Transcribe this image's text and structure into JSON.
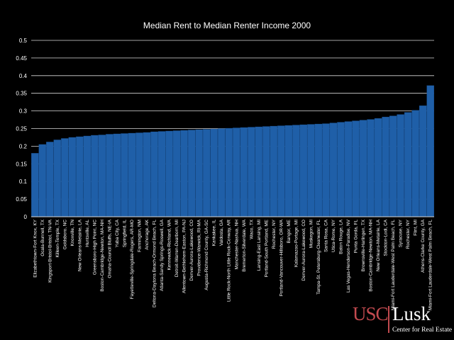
{
  "chart_data": {
    "type": "bar",
    "title": "Median Rent to Median Renter Income 2000",
    "xlabel": "",
    "ylabel": "",
    "ylim": [
      0,
      0.5
    ],
    "yticks": [
      "0",
      "0.05",
      "0.1",
      "0.15",
      "0.2",
      "0.25",
      "0.3",
      "0.35",
      "0.4",
      "0.45",
      "0.5"
    ],
    "grid": true,
    "bar_color": "#1f5fa8",
    "categories": [
      "Elizabethtown-Fort Knox, KY",
      "Ocala-Bunnell, TX",
      "Kingsport-Bristol-Bristol, TN-VA",
      "Killeen-Temple, TX",
      "Goldsboro, NC",
      "Knoxville, TN",
      "New Orleans-Metairie, LA",
      "Huntsville, AL",
      "Greensboro-High Point, NC",
      "Boston-Cambridge-Newton, MA-NH",
      "Omaha-Council Bluffs, NE-IA",
      "Yuba City, CA",
      "Springfield, IL",
      "Fayetteville-Springdale-Rogers, AR-MO",
      "Farmington, NM",
      "Anchorage, AK",
      "Deltona-Daytona Beach-Ormond Beach, FL",
      "Atlanta-Sandy Springs-Roswell, GA",
      "Kennewick-Richland, WA",
      "Detroit-Warren-Dearborn, MI",
      "Allentown-Bethlehem-Easton, PA-NJ",
      "Denver-Aurora-Lakewood, CO",
      "Providence-Warwick, RI-MA",
      "Augusta-Richmond County, GA-SC",
      "Kankakee, IL",
      "Valdosta, GA",
      "Little Rock-North Little Rock-Conway, AR",
      "Manchester-Nashua, NH",
      "Bremerton-Silverdale, WA",
      "Waco, TX",
      "Lansing-East Lansing, MI",
      "Portland-South Portland, ME",
      "Rochester, NY",
      "Portland-Vancouver-Hillsboro, OR-WA",
      "Bangor, ME",
      "Kalamazoo-Portage, MI",
      "Denver-Aurora-Lakewood, CO",
      "Muskegon, MI",
      "Tampa-St. Petersburg-Clearwater, FL",
      "Santa Rosa, CA",
      "Utica-Rome, NY",
      "Baton Rouge, LA",
      "Las Vegas-Henderson-Paradise, NV",
      "Punta Gorda, FL",
      "Brownsville-Harlingen, TX",
      "Boston-Cambridge-Newton, MA-NH",
      "New Orleans-Metairie, LA",
      "Stockton-Lodi, CA",
      "Miami-Fort Lauderdale-West Palm Beach, FL",
      "Syracuse, NY",
      "Rochester, NY",
      "Flint, MI",
      "Athens-Clarke County, GA",
      "Miami-Fort Lauderdale-West Palm Beach, FL"
    ],
    "series": [
      {
        "name": "Median Rent to Median Renter Income",
        "values": [
          0.18,
          0.205,
          0.212,
          0.218,
          0.222,
          0.225,
          0.227,
          0.229,
          0.231,
          0.232,
          0.234,
          0.235,
          0.236,
          0.237,
          0.238,
          0.239,
          0.241,
          0.242,
          0.243,
          0.244,
          0.245,
          0.246,
          0.247,
          0.248,
          0.249,
          0.25,
          0.251,
          0.252,
          0.253,
          0.254,
          0.255,
          0.256,
          0.257,
          0.258,
          0.259,
          0.26,
          0.261,
          0.262,
          0.263,
          0.264,
          0.266,
          0.268,
          0.27,
          0.272,
          0.274,
          0.276,
          0.279,
          0.283,
          0.286,
          0.29,
          0.296,
          0.302,
          0.315,
          0.372
        ]
      }
    ]
  },
  "logo": {
    "usc": "USC",
    "lusk": "Lusk",
    "subtitle": "Center for Real Estate"
  }
}
